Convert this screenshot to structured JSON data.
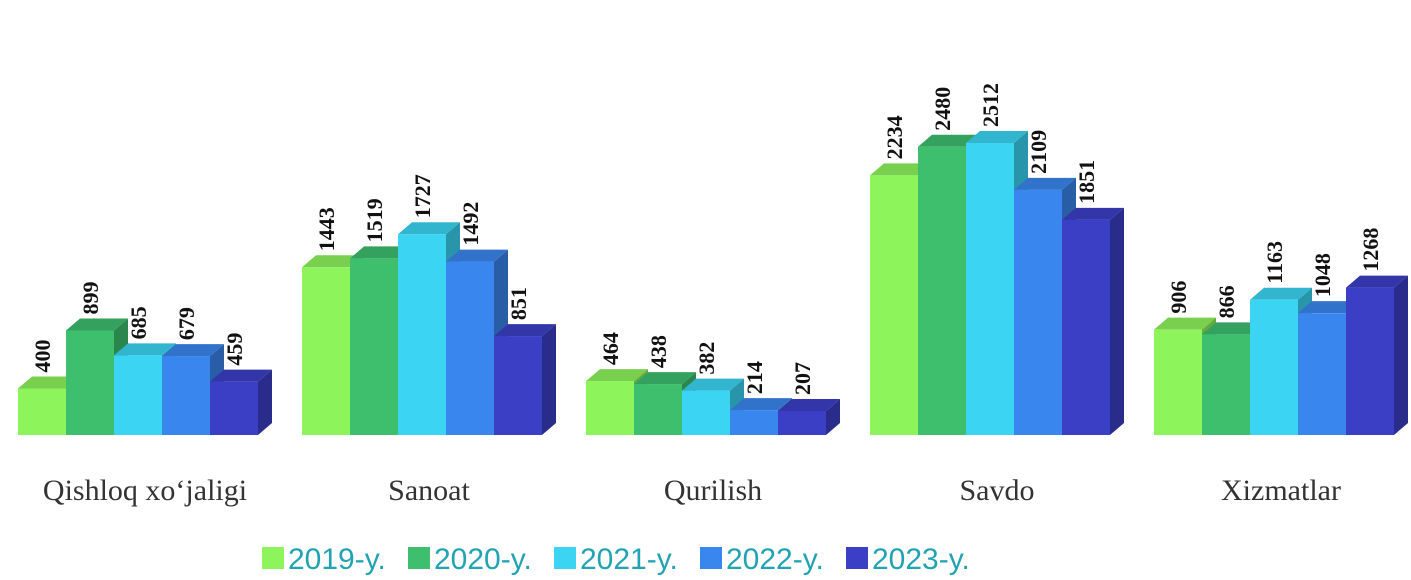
{
  "chart_data": {
    "type": "bar3d",
    "categories": [
      "Qishloq xo‘jaligi",
      "Sanoat",
      "Qurilish",
      "Savdo",
      "Xizmatlar"
    ],
    "series": [
      {
        "name": "2019-y.",
        "color": "#8ef45c",
        "values": [
          400,
          1443,
          464,
          2234,
          906
        ]
      },
      {
        "name": "2020-y.",
        "color": "#3dbf6e",
        "values": [
          899,
          1519,
          438,
          2480,
          866
        ]
      },
      {
        "name": "2021-y.",
        "color": "#3bd5f3",
        "values": [
          685,
          1727,
          382,
          2512,
          1163
        ]
      },
      {
        "name": "2022-y.",
        "color": "#3a86ef",
        "values": [
          679,
          1492,
          214,
          2109,
          1048
        ]
      },
      {
        "name": "2023-y.",
        "color": "#3b3fc6",
        "values": [
          459,
          851,
          207,
          1851,
          1268
        ]
      }
    ],
    "legend": "bottom"
  }
}
